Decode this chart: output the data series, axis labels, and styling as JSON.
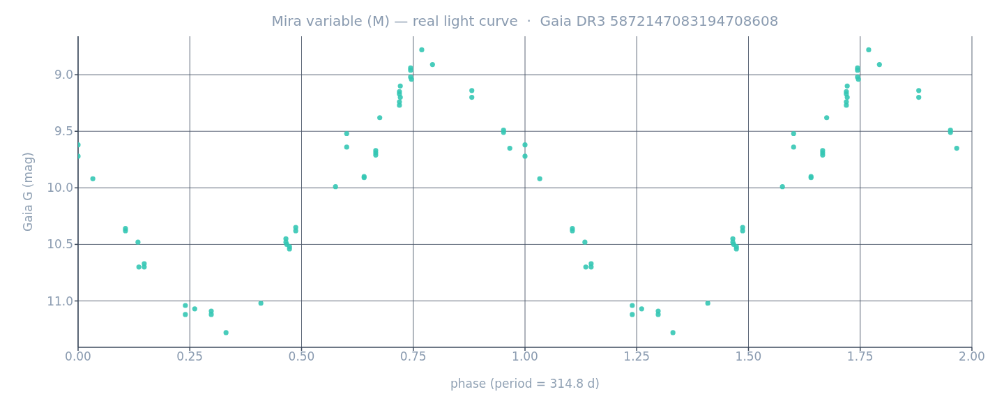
{
  "chart_data": {
    "type": "scatter",
    "title": "Mira variable (M) — real light curve  ·  Gaia DR3 5872147083194708608",
    "xlabel": "phase  (period = 314.8 d)",
    "ylabel": "Gaia G (mag)",
    "series": [
      {
        "color": "#34c6b4",
        "x": [
          0.0,
          0.0,
          0.033,
          0.106,
          0.106,
          0.134,
          0.136,
          0.148,
          0.148,
          0.24,
          0.24,
          0.261,
          0.298,
          0.298,
          0.331,
          0.409,
          0.465,
          0.465,
          0.467,
          0.473,
          0.473,
          0.487,
          0.487,
          0.576,
          0.601,
          0.601,
          0.64,
          0.64,
          0.666,
          0.666,
          0.666,
          0.675,
          0.721,
          0.719,
          0.719,
          0.721,
          0.719,
          0.719,
          0.744,
          0.744,
          0.744,
          0.746,
          0.769,
          0.793,
          0.881,
          0.881,
          0.952,
          0.952,
          0.966,
          1.0,
          1.0,
          1.033,
          1.106,
          1.106,
          1.134,
          1.136,
          1.148,
          1.148,
          1.24,
          1.24,
          1.261,
          1.298,
          1.298,
          1.331,
          1.409,
          1.465,
          1.465,
          1.467,
          1.473,
          1.473,
          1.487,
          1.487,
          1.576,
          1.601,
          1.601,
          1.64,
          1.64,
          1.666,
          1.666,
          1.666,
          1.675,
          1.721,
          1.719,
          1.719,
          1.721,
          1.719,
          1.719,
          1.744,
          1.744,
          1.744,
          1.746,
          1.769,
          1.793,
          1.881,
          1.881,
          1.952,
          1.952,
          1.966
        ],
        "values": [
          9.62,
          9.72,
          9.92,
          10.36,
          10.38,
          10.48,
          10.7,
          10.67,
          10.7,
          11.04,
          11.12,
          11.07,
          11.09,
          11.12,
          11.28,
          11.02,
          10.45,
          10.48,
          10.5,
          10.52,
          10.54,
          10.35,
          10.38,
          9.99,
          9.52,
          9.64,
          9.9,
          9.91,
          9.67,
          9.69,
          9.71,
          9.38,
          9.1,
          9.15,
          9.17,
          9.2,
          9.24,
          9.27,
          8.94,
          8.96,
          9.02,
          9.04,
          8.78,
          8.91,
          9.14,
          9.2,
          9.49,
          9.51,
          9.65,
          9.62,
          9.72,
          9.92,
          10.36,
          10.38,
          10.48,
          10.7,
          10.67,
          10.7,
          11.04,
          11.12,
          11.07,
          11.09,
          11.12,
          11.28,
          11.02,
          10.45,
          10.48,
          10.5,
          10.52,
          10.54,
          10.35,
          10.38,
          9.99,
          9.52,
          9.64,
          9.9,
          9.91,
          9.67,
          9.69,
          9.71,
          9.38,
          9.1,
          9.15,
          9.17,
          9.2,
          9.24,
          9.27,
          8.94,
          8.96,
          9.02,
          9.04,
          8.78,
          8.91,
          9.14,
          9.2,
          9.49,
          9.51,
          9.65
        ]
      }
    ],
    "xlim": [
      0,
      2
    ],
    "xticks": [
      {
        "value": 0,
        "label": "0.00"
      },
      {
        "value": 0.25,
        "label": "0.25"
      },
      {
        "value": 0.5,
        "label": "0.50"
      },
      {
        "value": 0.75,
        "label": "0.75"
      },
      {
        "value": 1,
        "label": "1.00"
      },
      {
        "value": 1.25,
        "label": "1.25"
      },
      {
        "value": 1.5,
        "label": "1.50"
      },
      {
        "value": 1.75,
        "label": "1.75"
      },
      {
        "value": 2,
        "label": "2.00"
      }
    ],
    "ylim": [
      11.41,
      8.66
    ],
    "yticks": [
      {
        "value": 9,
        "label": "9.0"
      },
      {
        "value": 9.5,
        "label": "9.5"
      },
      {
        "value": 10,
        "label": "10.0"
      },
      {
        "value": 10.5,
        "label": "10.5"
      },
      {
        "value": 11,
        "label": "11.0"
      }
    ],
    "grid": true,
    "marker": "circle"
  }
}
